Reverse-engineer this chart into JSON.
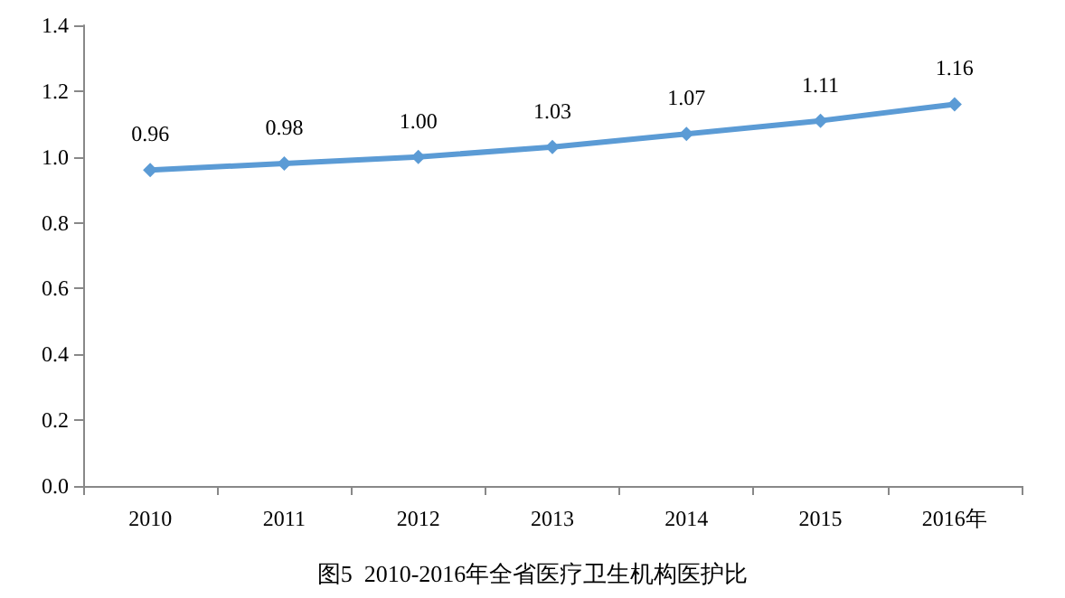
{
  "chart_data": {
    "type": "line",
    "title": "图5  2010-2016年全省医疗卫生机构医护比",
    "categories": [
      "2010",
      "2011",
      "2012",
      "2013",
      "2014",
      "2015",
      "2016年"
    ],
    "series": [
      {
        "color": "#5b9bd5",
        "values": [
          0.96,
          0.98,
          1.0,
          1.03,
          1.07,
          1.11,
          1.16
        ],
        "value_labels": [
          "0.96",
          "0.98",
          "1.00",
          "1.03",
          "1.07",
          "1.11",
          "1.16"
        ]
      }
    ],
    "ylim": [
      0,
      1.4
    ],
    "yticks": [
      {
        "value": 0,
        "label": "0.0"
      },
      {
        "value": 0.2,
        "label": "0.2"
      },
      {
        "value": 0.4,
        "label": "0.4"
      },
      {
        "value": 0.6,
        "label": "0.6"
      },
      {
        "value": 0.8,
        "label": "0.8"
      },
      {
        "value": 1.0,
        "label": "1.0"
      },
      {
        "value": 1.2,
        "label": "1.2"
      },
      {
        "value": 1.4,
        "label": "1.4"
      }
    ],
    "marker": "diamond",
    "line_style": "solid"
  }
}
